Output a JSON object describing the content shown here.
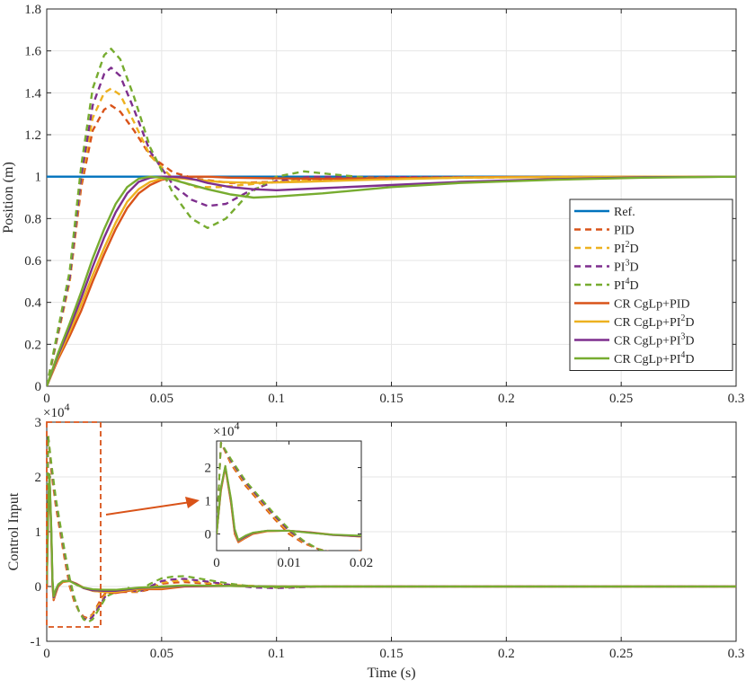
{
  "chart_data": [
    {
      "type": "line",
      "xlabel": "",
      "ylabel": "Position (m)",
      "xlim": [
        0,
        0.3
      ],
      "ylim": [
        0,
        1.8
      ],
      "xticks": [
        "0",
        "0.05",
        "0.1",
        "0.15",
        "0.2",
        "0.25",
        "0.3"
      ],
      "yticks": [
        "0",
        "0.2",
        "0.4",
        "0.6",
        "0.8",
        "1",
        "1.2",
        "1.4",
        "1.6",
        "1.8"
      ],
      "grid": true,
      "legend_position": "right",
      "series": [
        {
          "name": "Ref.",
          "color": "#0072BD",
          "dash": "solid",
          "x": [
            0,
            0.3
          ],
          "y": [
            1,
            1
          ]
        },
        {
          "name": "PID",
          "legend_base": "PID",
          "legend_sup": "",
          "color": "#D95319",
          "dash": "dashed",
          "x": [
            0,
            0.01,
            0.015,
            0.02,
            0.025,
            0.028,
            0.032,
            0.038,
            0.045,
            0.055,
            0.065,
            0.08,
            0.1,
            0.12,
            0.15,
            0.2,
            0.25,
            0.3
          ],
          "y": [
            0,
            0.5,
            0.95,
            1.22,
            1.32,
            1.34,
            1.31,
            1.22,
            1.1,
            1.02,
            0.99,
            0.97,
            0.975,
            0.985,
            0.992,
            0.997,
            0.999,
            1.0
          ]
        },
        {
          "name": "PI2D",
          "legend_base": "PI",
          "legend_sup": "2",
          "color": "#EDB120",
          "dash": "dashed",
          "x": [
            0,
            0.01,
            0.015,
            0.02,
            0.025,
            0.028,
            0.032,
            0.038,
            0.045,
            0.055,
            0.065,
            0.075,
            0.09,
            0.11,
            0.14,
            0.18,
            0.25,
            0.3
          ],
          "y": [
            0,
            0.5,
            0.98,
            1.28,
            1.4,
            1.42,
            1.39,
            1.26,
            1.1,
            0.99,
            0.95,
            0.95,
            0.965,
            0.985,
            0.993,
            0.997,
            0.999,
            1.0
          ]
        },
        {
          "name": "PI3D",
          "legend_base": "PI",
          "legend_sup": "3",
          "color": "#7E2F8E",
          "dash": "dashed",
          "x": [
            0,
            0.01,
            0.015,
            0.02,
            0.025,
            0.028,
            0.032,
            0.038,
            0.045,
            0.055,
            0.063,
            0.07,
            0.078,
            0.088,
            0.1,
            0.115,
            0.14,
            0.18,
            0.25,
            0.3
          ],
          "y": [
            0,
            0.52,
            1.0,
            1.34,
            1.49,
            1.52,
            1.48,
            1.32,
            1.12,
            0.96,
            0.89,
            0.86,
            0.87,
            0.93,
            0.98,
            1.0,
            0.998,
            0.997,
            0.999,
            1.0
          ]
        },
        {
          "name": "PI4D",
          "legend_base": "PI",
          "legend_sup": "4",
          "color": "#77AC30",
          "dash": "dashed",
          "x": [
            0,
            0.01,
            0.015,
            0.02,
            0.025,
            0.028,
            0.032,
            0.038,
            0.045,
            0.055,
            0.063,
            0.07,
            0.078,
            0.088,
            0.1,
            0.112,
            0.125,
            0.14,
            0.16,
            0.2,
            0.25,
            0.3
          ],
          "y": [
            0,
            0.55,
            1.05,
            1.42,
            1.58,
            1.61,
            1.56,
            1.38,
            1.14,
            0.92,
            0.8,
            0.755,
            0.8,
            0.92,
            1.0,
            1.025,
            1.01,
            0.995,
            0.993,
            0.998,
            1.0,
            1.0
          ]
        },
        {
          "name": "CR CgLp+PID",
          "legend_base": "CR CgLp+PID",
          "legend_sup": "",
          "color": "#D95319",
          "dash": "solid",
          "x": [
            0,
            0.005,
            0.01,
            0.015,
            0.02,
            0.025,
            0.03,
            0.035,
            0.04,
            0.045,
            0.05,
            0.055,
            0.06,
            0.07,
            0.08,
            0.1,
            0.12,
            0.15,
            0.2,
            0.3
          ],
          "y": [
            0,
            0.13,
            0.24,
            0.36,
            0.5,
            0.63,
            0.75,
            0.85,
            0.92,
            0.96,
            0.985,
            0.995,
            1.0,
            1.0,
            0.995,
            0.992,
            0.99,
            0.993,
            0.998,
            1.0
          ]
        },
        {
          "name": "CR CgLp+PI2D",
          "legend_base": "CR CgLp+PI",
          "legend_sup": "2",
          "color": "#EDB120",
          "dash": "solid",
          "x": [
            0,
            0.005,
            0.01,
            0.015,
            0.02,
            0.025,
            0.03,
            0.035,
            0.04,
            0.045,
            0.05,
            0.055,
            0.06,
            0.065,
            0.075,
            0.09,
            0.11,
            0.14,
            0.18,
            0.24,
            0.3
          ],
          "y": [
            0,
            0.14,
            0.26,
            0.39,
            0.53,
            0.66,
            0.78,
            0.88,
            0.94,
            0.975,
            0.99,
            0.995,
            0.99,
            0.985,
            0.975,
            0.97,
            0.975,
            0.985,
            0.995,
            0.999,
            1.0
          ]
        },
        {
          "name": "CR CgLp+PI3D",
          "legend_base": "CR CgLp+PI",
          "legend_sup": "3",
          "color": "#7E2F8E",
          "dash": "solid",
          "x": [
            0,
            0.005,
            0.01,
            0.015,
            0.02,
            0.025,
            0.03,
            0.035,
            0.04,
            0.045,
            0.05,
            0.055,
            0.06,
            0.065,
            0.07,
            0.08,
            0.09,
            0.1,
            0.12,
            0.15,
            0.18,
            0.22,
            0.26,
            0.3
          ],
          "y": [
            0,
            0.15,
            0.28,
            0.42,
            0.57,
            0.71,
            0.83,
            0.92,
            0.975,
            0.995,
            1.0,
            1.0,
            0.995,
            0.985,
            0.97,
            0.95,
            0.94,
            0.935,
            0.945,
            0.96,
            0.975,
            0.988,
            0.997,
            1.0
          ]
        },
        {
          "name": "CR CgLp+PI4D",
          "legend_base": "CR CgLp+PI",
          "legend_sup": "4",
          "color": "#77AC30",
          "dash": "solid",
          "x": [
            0,
            0.005,
            0.01,
            0.015,
            0.02,
            0.025,
            0.03,
            0.035,
            0.04,
            0.045,
            0.05,
            0.055,
            0.06,
            0.065,
            0.07,
            0.08,
            0.09,
            0.1,
            0.12,
            0.15,
            0.18,
            0.22,
            0.26,
            0.3
          ],
          "y": [
            0,
            0.16,
            0.3,
            0.45,
            0.61,
            0.75,
            0.87,
            0.95,
            0.99,
            1.0,
            0.995,
            0.985,
            0.97,
            0.955,
            0.94,
            0.915,
            0.9,
            0.905,
            0.92,
            0.95,
            0.97,
            0.985,
            0.995,
            1.0
          ]
        }
      ]
    },
    {
      "type": "line",
      "xlabel": "Time (s)",
      "ylabel": "Control Input",
      "xlim": [
        0,
        0.3
      ],
      "ylim": [
        -1,
        3
      ],
      "y_multiplier": "×10",
      "y_multiplier_exp": "4",
      "xticks": [
        "0",
        "0.05",
        "0.1",
        "0.15",
        "0.2",
        "0.25",
        "0.3"
      ],
      "yticks": [
        "-1",
        "0",
        "1",
        "2",
        "3"
      ],
      "grid": true,
      "series": [
        {
          "name": "PID",
          "color": "#D95319",
          "dash": "dashed",
          "x": [
            0,
            0.0006,
            0.002,
            0.004,
            0.006,
            0.008,
            0.01,
            0.012,
            0.014,
            0.016,
            0.018,
            0.02,
            0.022,
            0.024,
            0.026,
            0.03,
            0.035,
            0.04,
            0.045,
            0.05,
            0.055,
            0.06,
            0.07,
            0.08,
            0.09,
            0.1,
            0.12,
            0.15,
            0.2,
            0.3
          ],
          "y": [
            0,
            2.75,
            2.1,
            1.45,
            0.95,
            0.45,
            0.0,
            -0.28,
            -0.45,
            -0.55,
            -0.58,
            -0.5,
            -0.35,
            -0.2,
            -0.1,
            -0.1,
            -0.1,
            -0.1,
            -0.05,
            0.05,
            0.07,
            0.08,
            0.05,
            0.02,
            0.01,
            0.0,
            0.0,
            0.0,
            0.0,
            0.0
          ]
        },
        {
          "name": "PI2D",
          "color": "#EDB120",
          "dash": "dashed",
          "x": [
            0,
            0.0006,
            0.002,
            0.004,
            0.006,
            0.008,
            0.01,
            0.012,
            0.014,
            0.016,
            0.018,
            0.02,
            0.022,
            0.024,
            0.026,
            0.03,
            0.035,
            0.04,
            0.045,
            0.05,
            0.055,
            0.06,
            0.07,
            0.08,
            0.09,
            0.1,
            0.12,
            0.15,
            0.2,
            0.3
          ],
          "y": [
            0,
            2.75,
            2.15,
            1.5,
            1.0,
            0.5,
            0.05,
            -0.25,
            -0.45,
            -0.57,
            -0.6,
            -0.52,
            -0.38,
            -0.25,
            -0.12,
            -0.1,
            -0.08,
            -0.1,
            -0.02,
            0.07,
            0.1,
            0.11,
            0.07,
            0.03,
            0.01,
            0.0,
            0.0,
            0.0,
            0.0,
            0.0
          ]
        },
        {
          "name": "PI3D",
          "color": "#7E2F8E",
          "dash": "dashed",
          "x": [
            0,
            0.0006,
            0.002,
            0.004,
            0.006,
            0.008,
            0.01,
            0.012,
            0.014,
            0.016,
            0.018,
            0.02,
            0.022,
            0.024,
            0.026,
            0.03,
            0.035,
            0.04,
            0.045,
            0.05,
            0.055,
            0.06,
            0.07,
            0.08,
            0.09,
            0.1,
            0.12,
            0.15,
            0.2,
            0.3
          ],
          "y": [
            0,
            2.75,
            2.2,
            1.55,
            1.05,
            0.55,
            0.1,
            -0.22,
            -0.45,
            -0.58,
            -0.62,
            -0.55,
            -0.42,
            -0.28,
            -0.15,
            -0.1,
            -0.05,
            -0.1,
            0.0,
            0.1,
            0.13,
            0.14,
            0.09,
            0.03,
            -0.02,
            -0.03,
            0.0,
            0.0,
            0.0,
            0.0
          ]
        },
        {
          "name": "PI4D",
          "color": "#77AC30",
          "dash": "dashed",
          "x": [
            0,
            0.0006,
            0.002,
            0.004,
            0.006,
            0.008,
            0.01,
            0.012,
            0.014,
            0.016,
            0.018,
            0.02,
            0.022,
            0.024,
            0.026,
            0.03,
            0.035,
            0.04,
            0.045,
            0.05,
            0.055,
            0.06,
            0.07,
            0.08,
            0.09,
            0.1,
            0.12,
            0.15,
            0.2,
            0.3
          ],
          "y": [
            0,
            2.75,
            2.25,
            1.6,
            1.1,
            0.6,
            0.15,
            -0.2,
            -0.45,
            -0.6,
            -0.65,
            -0.6,
            -0.46,
            -0.32,
            -0.18,
            -0.1,
            -0.02,
            -0.08,
            0.05,
            0.15,
            0.18,
            0.19,
            0.12,
            0.05,
            0.0,
            -0.02,
            0.0,
            0.0,
            0.0,
            0.0
          ]
        },
        {
          "name": "CR CgLp+PID",
          "color": "#D95319",
          "dash": "solid",
          "x": [
            0,
            0.0006,
            0.0012,
            0.002,
            0.0025,
            0.003,
            0.004,
            0.005,
            0.007,
            0.01,
            0.013,
            0.016,
            0.02,
            0.025,
            0.03,
            0.04,
            0.05,
            0.06,
            0.08,
            0.1,
            0.15,
            0.3
          ],
          "y": [
            0,
            1.3,
            2.0,
            0.9,
            0.0,
            -0.25,
            -0.12,
            0.0,
            0.08,
            0.1,
            0.05,
            -0.02,
            -0.08,
            -0.1,
            -0.12,
            -0.05,
            -0.05,
            0.0,
            0.01,
            0.0,
            0.0,
            0.0
          ]
        },
        {
          "name": "CR CgLp+PI2D",
          "color": "#EDB120",
          "dash": "solid",
          "x": [
            0,
            0.0006,
            0.0012,
            0.002,
            0.0025,
            0.003,
            0.004,
            0.005,
            0.007,
            0.01,
            0.013,
            0.016,
            0.02,
            0.025,
            0.03,
            0.04,
            0.05,
            0.06,
            0.08,
            0.1,
            0.15,
            0.3
          ],
          "y": [
            0,
            1.35,
            2.02,
            0.95,
            0.05,
            -0.22,
            -0.1,
            0.02,
            0.09,
            0.1,
            0.04,
            -0.03,
            -0.08,
            -0.1,
            -0.1,
            -0.04,
            -0.03,
            0.01,
            0.01,
            0.0,
            0.0,
            0.0
          ]
        },
        {
          "name": "CR CgLp+PI3D",
          "color": "#7E2F8E",
          "dash": "solid",
          "x": [
            0,
            0.0006,
            0.0012,
            0.002,
            0.0025,
            0.003,
            0.004,
            0.005,
            0.007,
            0.01,
            0.013,
            0.016,
            0.02,
            0.025,
            0.03,
            0.04,
            0.05,
            0.06,
            0.08,
            0.1,
            0.15,
            0.3
          ],
          "y": [
            0,
            1.38,
            2.04,
            1.0,
            0.1,
            -0.2,
            -0.08,
            0.03,
            0.1,
            0.1,
            0.04,
            -0.03,
            -0.07,
            -0.08,
            -0.08,
            -0.03,
            -0.01,
            0.01,
            0.01,
            0.0,
            0.0,
            0.0
          ]
        },
        {
          "name": "CR CgLp+PI4D",
          "color": "#77AC30",
          "dash": "solid",
          "x": [
            0,
            0.0006,
            0.0012,
            0.002,
            0.0025,
            0.003,
            0.004,
            0.005,
            0.007,
            0.01,
            0.013,
            0.016,
            0.02,
            0.025,
            0.03,
            0.04,
            0.05,
            0.06,
            0.08,
            0.1,
            0.15,
            0.3
          ],
          "y": [
            0,
            1.4,
            2.05,
            1.05,
            0.15,
            -0.18,
            -0.05,
            0.04,
            0.1,
            0.1,
            0.03,
            -0.02,
            -0.05,
            -0.06,
            -0.06,
            -0.02,
            0.0,
            0.02,
            0.01,
            0.0,
            0.0,
            0.0
          ]
        }
      ]
    },
    {
      "type": "line",
      "role": "inset",
      "xlim": [
        0,
        0.02
      ],
      "ylim": [
        -0.5,
        2.8
      ],
      "y_multiplier": "×10",
      "y_multiplier_exp": "4",
      "xticks": [
        "0",
        "0.01",
        "0.02"
      ],
      "yticks": [
        "0",
        "1",
        "2"
      ],
      "grid": false
    }
  ]
}
